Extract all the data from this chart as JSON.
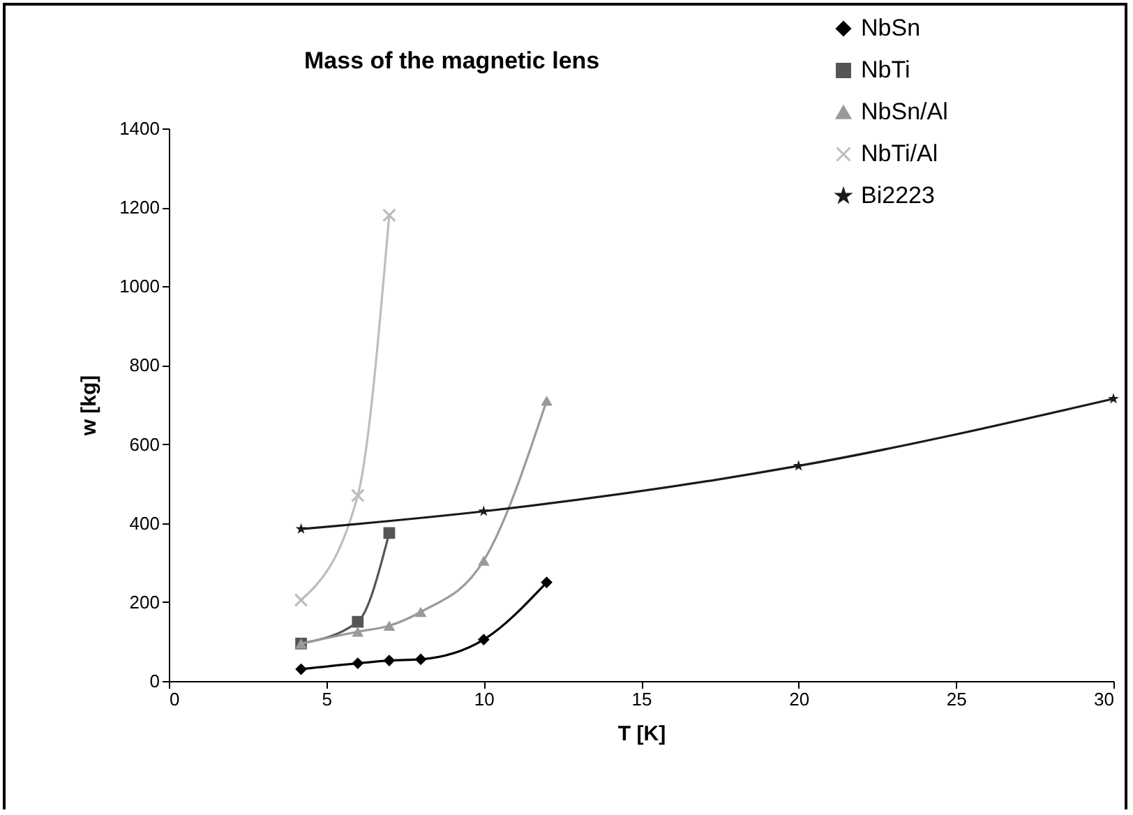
{
  "chart_data": {
    "type": "line",
    "title": "Mass of the magnetic lens",
    "xlabel": "T [K]",
    "ylabel": "w [kg]",
    "xlim": [
      0,
      30
    ],
    "xticks": [
      0,
      5,
      10,
      15,
      20,
      25,
      30
    ],
    "ylim": [
      0,
      1400
    ],
    "yticks": [
      0,
      200,
      400,
      600,
      800,
      1000,
      1200,
      1400
    ],
    "grid": false,
    "legend": "top right",
    "series": [
      {
        "name": "NbSn",
        "color": "#000000",
        "marker": "diamond",
        "x": [
          4.2,
          6,
          7,
          8,
          10,
          12
        ],
        "values": [
          30,
          45,
          52,
          55,
          105,
          250
        ]
      },
      {
        "name": "NbTi",
        "color": "#555555",
        "marker": "square",
        "x": [
          4.2,
          6,
          7
        ],
        "values": [
          95,
          150,
          375
        ]
      },
      {
        "name": "NbSn/Al",
        "color": "#9a9a9a",
        "marker": "triangle",
        "x": [
          4.2,
          6,
          7,
          8,
          10,
          12
        ],
        "values": [
          95,
          125,
          140,
          175,
          305,
          710
        ]
      },
      {
        "name": "NbTi/Al",
        "color": "#bdbdbd",
        "marker": "cross",
        "x": [
          4.2,
          6,
          7
        ],
        "values": [
          205,
          470,
          1180
        ]
      },
      {
        "name": "Bi2223",
        "color": "#1a1a1a",
        "marker": "star",
        "x": [
          4.2,
          10,
          20,
          30
        ],
        "values": [
          385,
          430,
          545,
          715
        ]
      }
    ]
  }
}
